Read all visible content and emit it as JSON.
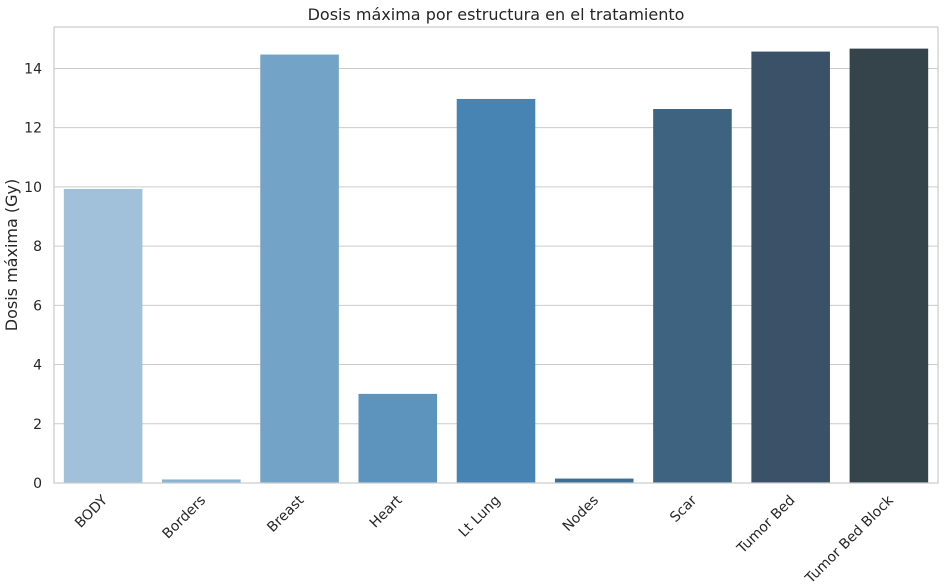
{
  "chart_data": {
    "type": "bar",
    "title": "Dosis máxima por estructura en el tratamiento",
    "xlabel": "",
    "ylabel": "Dosis máxima (Gy)",
    "categories": [
      "BODY",
      "Borders",
      "Breast",
      "Heart",
      "Lt Lung",
      "Nodes",
      "Scar",
      "Tumor Bed",
      "Tumor Bed Block"
    ],
    "values": [
      9.93,
      0.12,
      14.47,
      3.01,
      12.97,
      0.15,
      12.63,
      14.57,
      14.67
    ],
    "colors": [
      "#a1c0d9",
      "#8bb3d3",
      "#73a4c7",
      "#5c94bd",
      "#4884b3",
      "#3f6e93",
      "#3d6381",
      "#3b5168",
      "#35434b"
    ],
    "ylim": [
      0,
      15.4
    ],
    "yticks": [
      0,
      2,
      4,
      6,
      8,
      10,
      12,
      14
    ],
    "grid": true,
    "legend": "none"
  }
}
